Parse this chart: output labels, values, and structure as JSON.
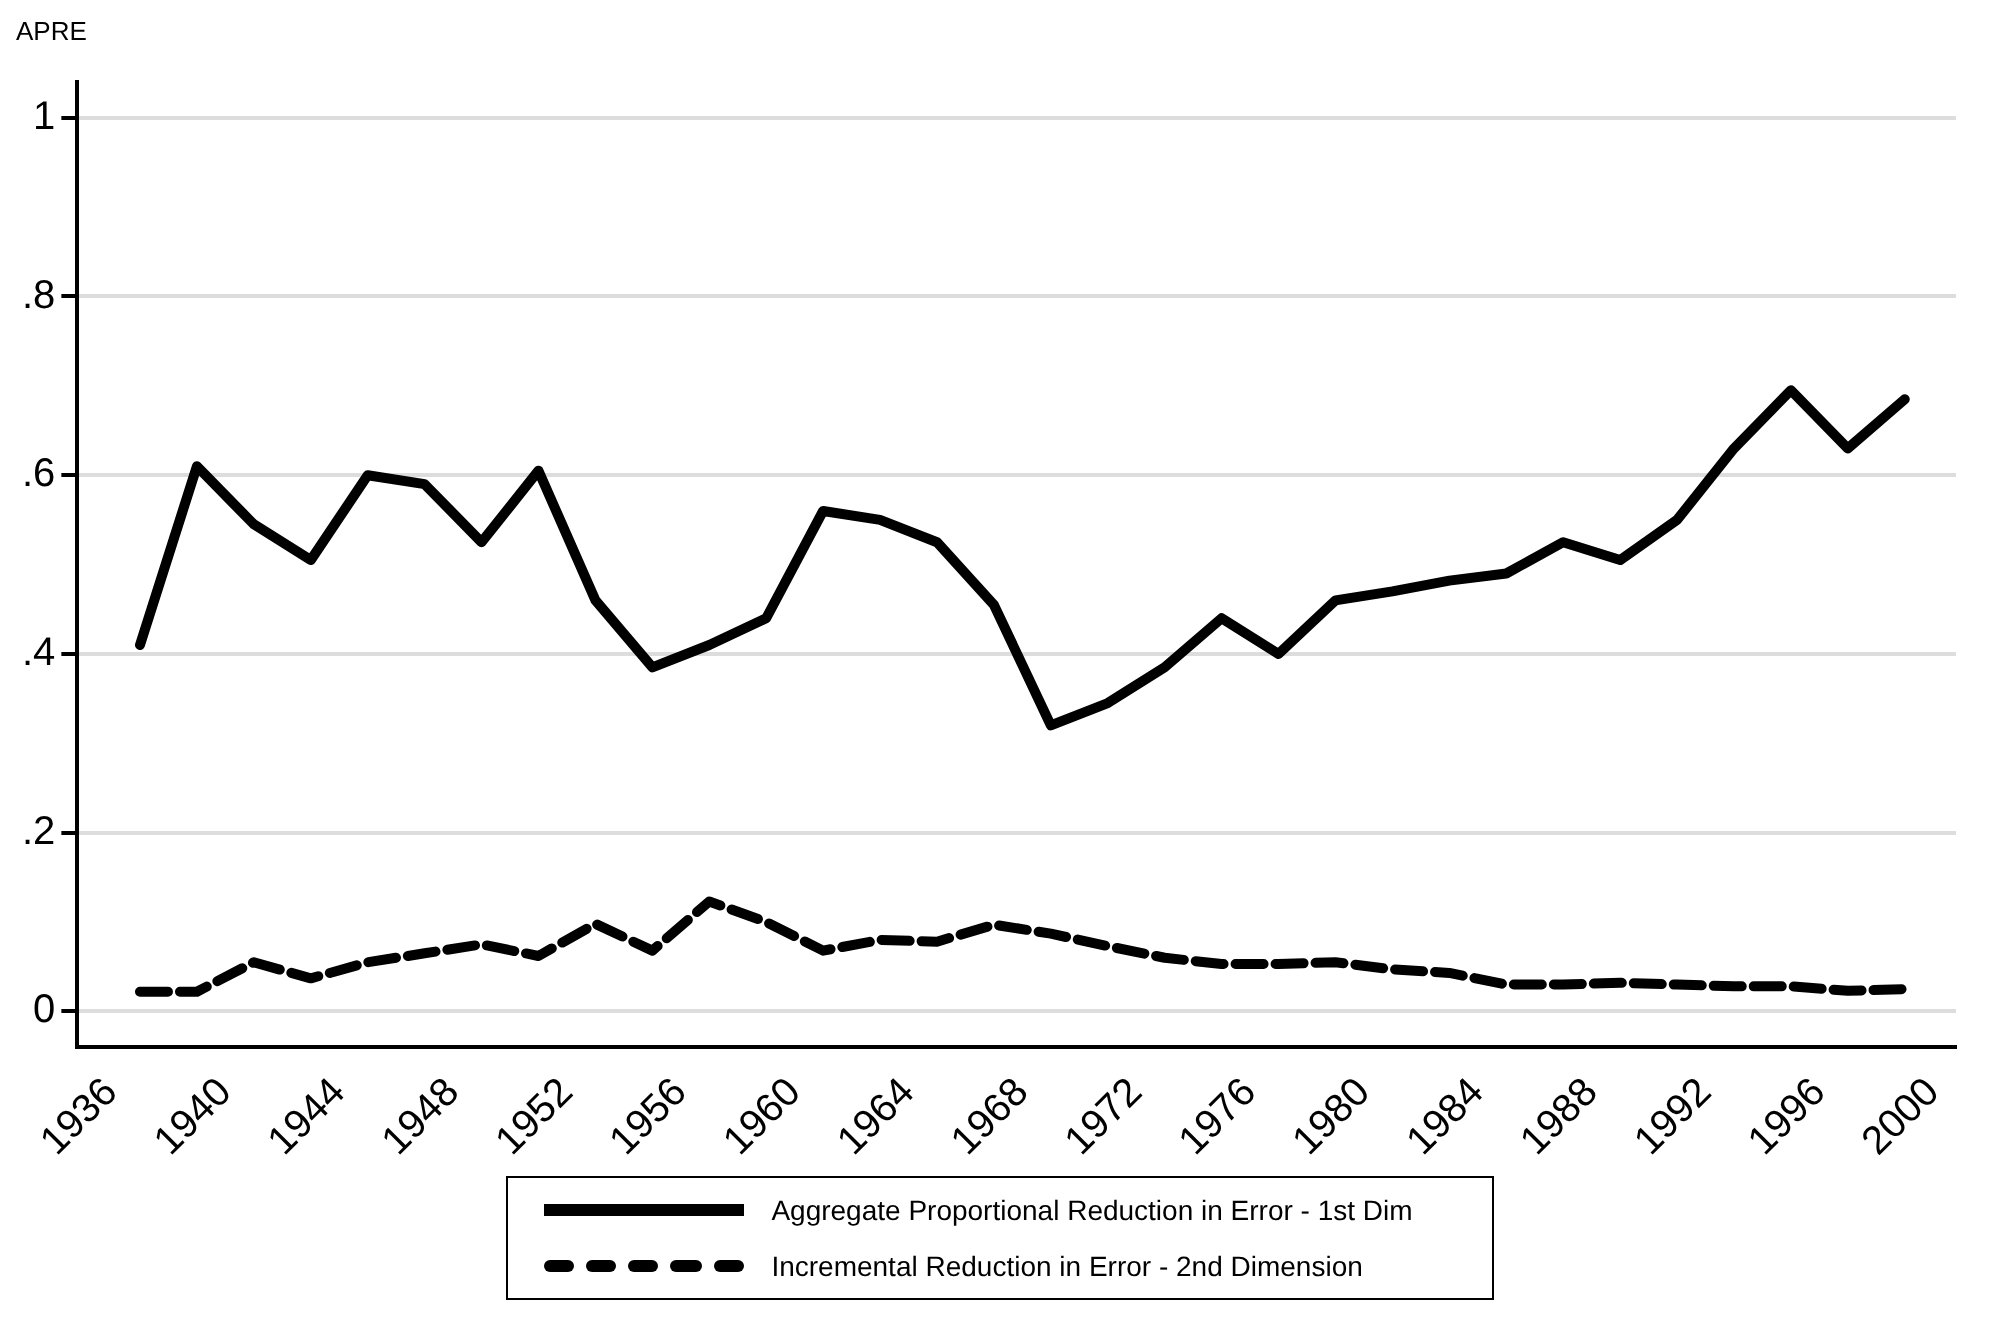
{
  "chart_data": {
    "type": "line",
    "ylabel": "APRE",
    "x": [
      1937,
      1939,
      1941,
      1943,
      1945,
      1947,
      1949,
      1951,
      1953,
      1955,
      1957,
      1959,
      1961,
      1963,
      1965,
      1967,
      1969,
      1971,
      1973,
      1975,
      1977,
      1979,
      1981,
      1983,
      1985,
      1987,
      1989,
      1991,
      1993,
      1995,
      1997,
      1999
    ],
    "series": [
      {
        "name": "Aggregate Proportional Reduction in Error - 1st Dim",
        "color": "#000000",
        "line_style": "solid",
        "values": [
          0.41,
          0.61,
          0.545,
          0.505,
          0.6,
          0.59,
          0.525,
          0.605,
          0.46,
          0.385,
          0.41,
          0.44,
          0.56,
          0.55,
          0.525,
          0.455,
          0.32,
          0.345,
          0.385,
          0.44,
          0.4,
          0.46,
          0.47,
          0.482,
          0.49,
          0.525,
          0.505,
          0.55,
          0.63,
          0.695,
          0.63,
          0.685
        ]
      },
      {
        "name": "Incremental Reduction in Error - 2nd Dimension",
        "color": "#000000",
        "line_style": "dashed",
        "values": [
          0.022,
          0.022,
          0.055,
          0.037,
          0.055,
          0.065,
          0.075,
          0.062,
          0.098,
          0.068,
          0.123,
          0.1,
          0.068,
          0.08,
          0.078,
          0.097,
          0.087,
          0.073,
          0.06,
          0.053,
          0.053,
          0.055,
          0.047,
          0.043,
          0.03,
          0.03,
          0.032,
          0.03,
          0.028,
          0.028,
          0.023,
          0.025
        ]
      }
    ],
    "xlim": [
      1934.8,
      2000.8
    ],
    "xticks": [
      1936,
      1940,
      1944,
      1948,
      1952,
      1956,
      1960,
      1964,
      1968,
      1972,
      1976,
      1980,
      1984,
      1988,
      1992,
      1996,
      2000
    ],
    "ylim": [
      -0.04,
      1.04
    ],
    "yticks": [
      {
        "value": 0,
        "label": "0"
      },
      {
        "value": 0.2,
        "label": ".2"
      },
      {
        "value": 0.4,
        "label": ".4"
      },
      {
        "value": 0.6,
        "label": ".6"
      },
      {
        "value": 0.8,
        "label": ".8"
      },
      {
        "value": 1,
        "label": "1"
      }
    ],
    "grid": "y",
    "legend": "bottom",
    "marker": "none"
  }
}
